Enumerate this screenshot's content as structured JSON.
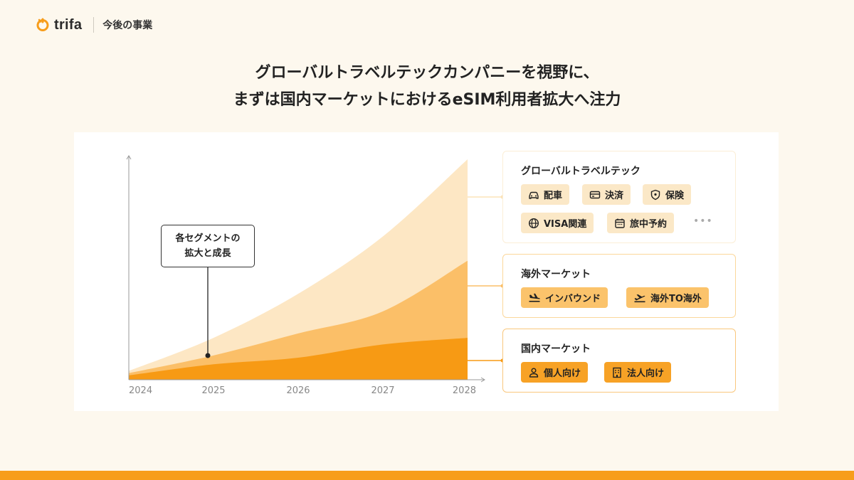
{
  "header": {
    "logo_text": "trifa",
    "section": "今後の事業"
  },
  "headline": {
    "line1": "グローバルトラベルテックカンパニーを視野に、",
    "line2": "まずは国内マーケットにおけるeSIM利用者拡大へ注力"
  },
  "callout": {
    "line1": "各セグメントの",
    "line2": "拡大と成長"
  },
  "chart_data": {
    "type": "area",
    "stacked": true,
    "x": [
      2024,
      2025,
      2026,
      2027,
      2028
    ],
    "tick_labels": [
      "2024",
      "2025",
      "2026",
      "2027",
      "2028"
    ],
    "series": [
      {
        "name": "国内マーケット",
        "color": "#f79a14",
        "values": [
          2,
          7,
          10,
          16,
          19
        ]
      },
      {
        "name": "海外マーケット",
        "color": "#fbbf68",
        "values": [
          1,
          4,
          11,
          15,
          35
        ]
      },
      {
        "name": "グローバルトラベルテック",
        "color": "#fde7c4",
        "values": [
          1,
          8,
          18,
          34,
          46
        ]
      }
    ],
    "ylim": [
      0,
      100
    ],
    "grid": false,
    "title": "",
    "xlabel": "",
    "ylabel": ""
  },
  "cards": {
    "global": {
      "title": "グローバルトラベルテック",
      "chips": [
        {
          "label": "配車",
          "icon": "car-icon"
        },
        {
          "label": "決済",
          "icon": "card-icon"
        },
        {
          "label": "保険",
          "icon": "shield-icon"
        },
        {
          "label": "VISA関連",
          "icon": "globe-icon"
        },
        {
          "label": "旅中予約",
          "icon": "calendar-icon"
        }
      ],
      "more": "•••"
    },
    "overseas": {
      "title": "海外マーケット",
      "chips": [
        {
          "label": "インバウンド",
          "icon": "plane-arrival-icon"
        },
        {
          "label": "海外TO海外",
          "icon": "plane-departure-icon"
        }
      ]
    },
    "domestic": {
      "title": "国内マーケット",
      "chips": [
        {
          "label": "個人向け",
          "icon": "person-icon"
        },
        {
          "label": "法人向け",
          "icon": "building-icon"
        }
      ]
    }
  },
  "colors": {
    "accent": "#f79d1b",
    "background": "#fdf8ee",
    "light": "#fde7c4",
    "mid": "#fbbf68",
    "dark": "#f79a14"
  }
}
